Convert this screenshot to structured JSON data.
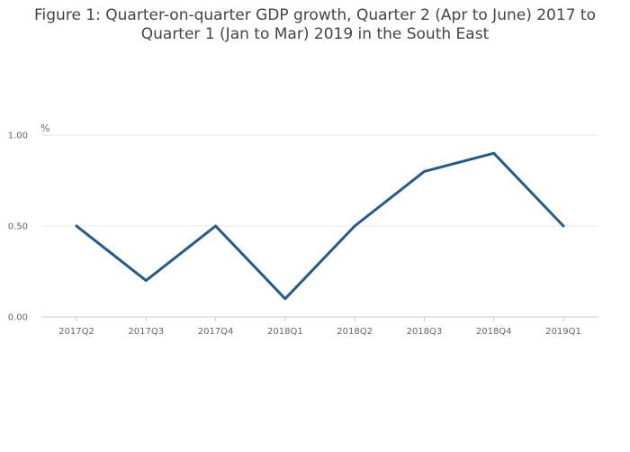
{
  "chart_data": {
    "type": "line",
    "title_lines": [
      "Figure 1: Quarter-on-quarter GDP growth, Quarter 2 (Apr to June) 2017 to",
      "Quarter 1 (Jan to Mar) 2019 in the South East"
    ],
    "ylabel": "%",
    "xlabel": "",
    "categories": [
      "2017Q2",
      "2017Q3",
      "2017Q4",
      "2018Q1",
      "2018Q2",
      "2018Q3",
      "2018Q4",
      "2019Q1"
    ],
    "series": [
      {
        "values": [
          0.5,
          0.2,
          0.5,
          0.1,
          0.5,
          0.8,
          0.9,
          0.5
        ],
        "color": "#255a8c"
      }
    ],
    "ylim": [
      0,
      1
    ],
    "yticks": [
      "0.00",
      "0.50",
      "1.00"
    ],
    "grid": true,
    "legend": "none"
  }
}
